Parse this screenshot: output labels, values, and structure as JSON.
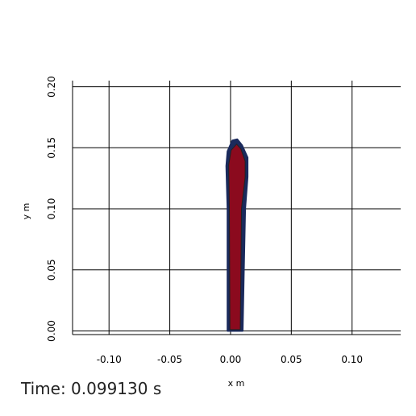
{
  "time_label": "Time: 0.099130 s",
  "chart_data": {
    "type": "area",
    "title": "",
    "xlabel": "x m",
    "ylabel": "y m",
    "xlim": [
      -0.13,
      0.14
    ],
    "ylim": [
      -0.003,
      0.205
    ],
    "x_ticks": [
      -0.1,
      -0.05,
      0.0,
      0.05,
      0.1
    ],
    "x_tick_labels": [
      "-0.10",
      "-0.05",
      "0.00",
      "0.05",
      "0.10"
    ],
    "y_ticks": [
      0.0,
      0.05,
      0.1,
      0.15,
      0.2
    ],
    "y_tick_labels": [
      "0.00",
      "0.05",
      "0.10",
      "0.15",
      "0.20"
    ],
    "grid": true,
    "colors": {
      "fill": "#8b0a1e",
      "outline": "#1a2a5c",
      "grid": "#000000"
    },
    "series": [
      {
        "outer_boundary": [
          [
            -0.0025,
            0.0
          ],
          [
            -0.0025,
            0.1
          ],
          [
            -0.0035,
            0.135
          ],
          [
            -0.0025,
            0.147
          ],
          [
            0.0015,
            0.156
          ],
          [
            0.0055,
            0.157
          ],
          [
            0.0095,
            0.152
          ],
          [
            0.014,
            0.142
          ],
          [
            0.014,
            0.126
          ],
          [
            0.012,
            0.1
          ],
          [
            0.011,
            0.05
          ],
          [
            0.01,
            0.0
          ]
        ],
        "inner_boundary": [
          [
            -0.0005,
            0.001
          ],
          [
            -0.001,
            0.1
          ],
          [
            -0.0015,
            0.136
          ],
          [
            0.0005,
            0.148
          ],
          [
            0.005,
            0.153
          ],
          [
            0.0085,
            0.149
          ],
          [
            0.012,
            0.139
          ],
          [
            0.012,
            0.126
          ],
          [
            0.009,
            0.1
          ],
          [
            0.0085,
            0.05
          ],
          [
            0.008,
            0.001
          ]
        ]
      }
    ]
  }
}
